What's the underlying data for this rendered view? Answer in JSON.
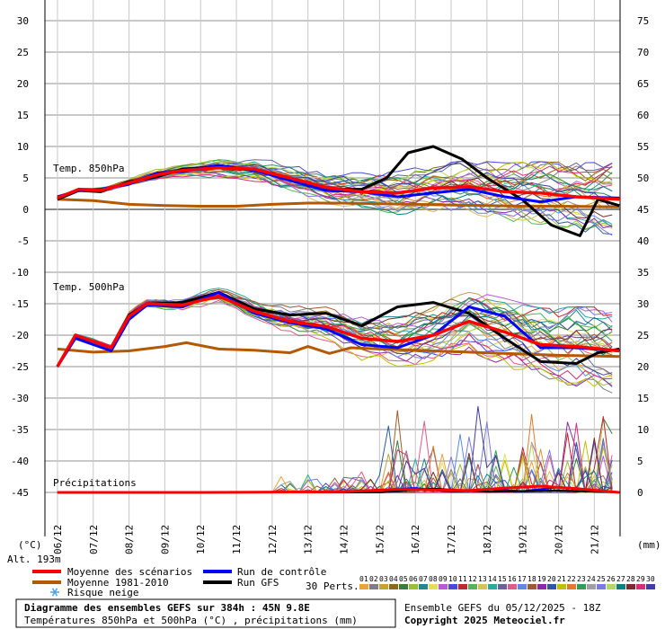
{
  "chart_data": {
    "type": "line",
    "title": "Diagramme des ensembles GEFS sur 384h : 45N 9.8E",
    "subtitle": "Températures 850hPa et 500hPa (°C) , précipitations (mm)",
    "left_unit": "(°C)",
    "right_unit": "(mm)",
    "altitude": "Alt. 193m",
    "left_axis": {
      "ylim": [
        -50,
        32
      ],
      "ticks": [
        30,
        25,
        20,
        15,
        10,
        5,
        0,
        -5,
        -10,
        -15,
        -20,
        -25,
        -30,
        -35,
        -40,
        -45
      ]
    },
    "right_axis": {
      "ticks": [
        75,
        70,
        65,
        60,
        55,
        50,
        45,
        40,
        35,
        30,
        25,
        20,
        15,
        10,
        5,
        0
      ],
      "zero_at_left": -45,
      "scale_factor": 1
    },
    "dates": [
      "06/12",
      "07/12",
      "08/12",
      "09/12",
      "10/12",
      "11/12",
      "12/12",
      "13/12",
      "14/12",
      "15/12",
      "16/12",
      "17/12",
      "18/12",
      "19/12",
      "20/12",
      "21/12"
    ],
    "t_start_day": -0.35,
    "t_end_day": 15.72,
    "panel_labels": {
      "t850": "Temp. 850hPa",
      "t500": "Temp. 500hPa",
      "precip": "Précipitations"
    },
    "series_850": {
      "mean": [
        [
          0,
          1.8
        ],
        [
          0.6,
          3.2
        ],
        [
          1.2,
          3.0
        ],
        [
          2,
          4.2
        ],
        [
          2.8,
          5.5
        ],
        [
          3.5,
          6.2
        ],
        [
          4.5,
          6.6
        ],
        [
          5.5,
          6.4
        ],
        [
          6.5,
          5.0
        ],
        [
          7.5,
          3.5
        ],
        [
          8.5,
          2.8
        ],
        [
          9.5,
          2.6
        ],
        [
          10.5,
          3.4
        ],
        [
          11.5,
          3.6
        ],
        [
          12.5,
          2.8
        ],
        [
          13.5,
          2.6
        ],
        [
          14.5,
          2.0
        ],
        [
          15.7,
          1.6
        ]
      ],
      "control": [
        [
          0,
          2.0
        ],
        [
          0.6,
          3.0
        ],
        [
          1.2,
          3.2
        ],
        [
          2,
          4.0
        ],
        [
          2.8,
          5.8
        ],
        [
          3.5,
          6.0
        ],
        [
          4.5,
          7.0
        ],
        [
          5.5,
          6.2
        ],
        [
          6.5,
          4.6
        ],
        [
          7.5,
          3.0
        ],
        [
          8.5,
          2.8
        ],
        [
          9.5,
          2.0
        ],
        [
          10.5,
          2.6
        ],
        [
          11.5,
          3.2
        ],
        [
          12.5,
          2.0
        ],
        [
          13.5,
          1.2
        ],
        [
          14.5,
          2.0
        ],
        [
          15.7,
          1.8
        ]
      ],
      "gfs": [
        [
          0,
          1.6
        ],
        [
          0.6,
          3.0
        ],
        [
          1.2,
          2.8
        ],
        [
          2,
          4.4
        ],
        [
          2.8,
          5.2
        ],
        [
          3.5,
          6.4
        ],
        [
          4.5,
          6.8
        ],
        [
          5.5,
          6.2
        ],
        [
          6.5,
          4.8
        ],
        [
          7.5,
          3.2
        ],
        [
          8.5,
          3.2
        ],
        [
          9.2,
          5.0
        ],
        [
          9.8,
          9.0
        ],
        [
          10.5,
          10.0
        ],
        [
          11.3,
          8.0
        ],
        [
          12,
          5.0
        ],
        [
          13,
          1.5
        ],
        [
          13.8,
          -2.5
        ],
        [
          14.6,
          -4.2
        ],
        [
          15.1,
          1.6
        ],
        [
          15.7,
          0.6
        ]
      ],
      "climate": [
        [
          0,
          1.6
        ],
        [
          1,
          1.4
        ],
        [
          2,
          0.8
        ],
        [
          3,
          0.6
        ],
        [
          4,
          0.5
        ],
        [
          5,
          0.5
        ],
        [
          6,
          0.8
        ],
        [
          7,
          1.0
        ],
        [
          8,
          1.0
        ],
        [
          9,
          0.9
        ],
        [
          10,
          0.8
        ],
        [
          11,
          0.7
        ],
        [
          12,
          0.6
        ],
        [
          13,
          0.5
        ],
        [
          14,
          0.5
        ],
        [
          15.7,
          0.4
        ]
      ]
    },
    "series_500": {
      "mean": [
        [
          0,
          -25
        ],
        [
          0.5,
          -20
        ],
        [
          1,
          -21
        ],
        [
          1.5,
          -22
        ],
        [
          2,
          -17
        ],
        [
          2.5,
          -15
        ],
        [
          3.5,
          -15.2
        ],
        [
          4.5,
          -13.8
        ],
        [
          5.5,
          -16.2
        ],
        [
          6.5,
          -17.8
        ],
        [
          7.5,
          -18.6
        ],
        [
          8.5,
          -20.5
        ],
        [
          9.5,
          -21
        ],
        [
          10.5,
          -20
        ],
        [
          11.5,
          -17.8
        ],
        [
          12.5,
          -19.5
        ],
        [
          13.5,
          -21.5
        ],
        [
          14.5,
          -21.8
        ],
        [
          15.7,
          -22.5
        ]
      ],
      "control": [
        [
          0,
          -25
        ],
        [
          0.5,
          -20.5
        ],
        [
          1,
          -21.5
        ],
        [
          1.5,
          -22.5
        ],
        [
          2,
          -17.5
        ],
        [
          2.5,
          -15.2
        ],
        [
          3.5,
          -15.5
        ],
        [
          4.5,
          -13.2
        ],
        [
          5.5,
          -16.5
        ],
        [
          6.5,
          -18
        ],
        [
          7.5,
          -19
        ],
        [
          8.5,
          -21.5
        ],
        [
          9.5,
          -22
        ],
        [
          10.5,
          -20
        ],
        [
          11.5,
          -15.5
        ],
        [
          12.5,
          -17
        ],
        [
          13.5,
          -22
        ],
        [
          14.5,
          -22
        ],
        [
          15.7,
          -22.5
        ]
      ],
      "gfs": [
        [
          0,
          -25
        ],
        [
          0.5,
          -20.2
        ],
        [
          1,
          -21
        ],
        [
          1.5,
          -22
        ],
        [
          2,
          -16.8
        ],
        [
          2.5,
          -15
        ],
        [
          3.5,
          -14.8
        ],
        [
          4.5,
          -13.2
        ],
        [
          5.5,
          -15.8
        ],
        [
          6.5,
          -16.8
        ],
        [
          7.5,
          -16.5
        ],
        [
          8.5,
          -18.5
        ],
        [
          9.5,
          -15.5
        ],
        [
          10.5,
          -14.8
        ],
        [
          11.5,
          -16.5
        ],
        [
          12.5,
          -20.5
        ],
        [
          13.5,
          -24.2
        ],
        [
          14.5,
          -24.5
        ],
        [
          15.1,
          -22.8
        ],
        [
          15.7,
          -22.2
        ]
      ],
      "climate": [
        [
          0,
          -22.2
        ],
        [
          1,
          -22.7
        ],
        [
          2,
          -22.5
        ],
        [
          3,
          -21.8
        ],
        [
          3.6,
          -21.2
        ],
        [
          4.5,
          -22.2
        ],
        [
          5.5,
          -22.4
        ],
        [
          6.5,
          -22.8
        ],
        [
          7,
          -21.8
        ],
        [
          7.6,
          -22.9
        ],
        [
          8.2,
          -22.0
        ],
        [
          9,
          -22.2
        ],
        [
          10,
          -22.4
        ],
        [
          11,
          -22.6
        ],
        [
          12,
          -22.8
        ],
        [
          13,
          -23.0
        ],
        [
          14,
          -23.2
        ],
        [
          15.7,
          -23.4
        ]
      ]
    },
    "series_precip": {
      "mean": [
        [
          0,
          -45
        ],
        [
          4,
          -45
        ],
        [
          8,
          -44.9
        ],
        [
          9.5,
          -44.5
        ],
        [
          10.5,
          -44.6
        ],
        [
          11.5,
          -44.7
        ],
        [
          12.5,
          -44.3
        ],
        [
          13.5,
          -44.0
        ],
        [
          14.5,
          -44.4
        ],
        [
          15.7,
          -45
        ]
      ],
      "control": [
        [
          0,
          -45
        ],
        [
          8,
          -44.9
        ],
        [
          10,
          -44.3
        ],
        [
          11,
          -44.9
        ],
        [
          12,
          -44.5
        ],
        [
          13,
          -44.8
        ],
        [
          14,
          -44.2
        ],
        [
          15.7,
          -45
        ]
      ],
      "gfs": [
        [
          0,
          -45
        ],
        [
          9,
          -45
        ],
        [
          10.5,
          -44.4
        ],
        [
          12,
          -44.9
        ],
        [
          14,
          -44.7
        ],
        [
          15.7,
          -45
        ]
      ]
    },
    "legend": [
      {
        "label": "Moyenne des scénarios",
        "color": "#ff0000"
      },
      {
        "label": "Run de contrôle",
        "color": "#0000ff"
      },
      {
        "label": "Moyenne 1981-2010",
        "color": "#b35900"
      },
      {
        "label": "Run GFS",
        "color": "#000000"
      },
      {
        "label": "Risque neige",
        "color": "#4aa3df"
      }
    ],
    "perturbations": {
      "label": "30 Perts.",
      "ids": [
        "01",
        "02",
        "03",
        "04",
        "05",
        "06",
        "07",
        "08",
        "09",
        "10",
        "11",
        "12",
        "13",
        "14",
        "15",
        "16",
        "17",
        "18",
        "19",
        "20",
        "21",
        "22",
        "23",
        "24",
        "25",
        "26",
        "27",
        "28",
        "29",
        "30"
      ],
      "colors": [
        "#e8a33b",
        "#7f7f7f",
        "#c9a13b",
        "#8c6a1c",
        "#3a7d3a",
        "#9bbd3c",
        "#1f8a8a",
        "#e0e05a",
        "#b85ad6",
        "#4a4ad6",
        "#c2272d",
        "#57b357",
        "#d6c15a",
        "#2ca8a0",
        "#666699",
        "#e05a8a",
        "#5a8ae0",
        "#a05a2c",
        "#8a2ca0",
        "#2c5aa0",
        "#c0c000",
        "#e07a2c",
        "#2ca05a",
        "#a0a0a0",
        "#7a7ae0",
        "#b3d95a",
        "#0a7f7f",
        "#7a2c2c",
        "#d62c7a",
        "#3f3f9f"
      ]
    },
    "footer": {
      "run_info": "Ensemble GEFS du 05/12/2025 - 18Z",
      "copyright": "Copyright 2025 Meteociel.fr"
    }
  }
}
